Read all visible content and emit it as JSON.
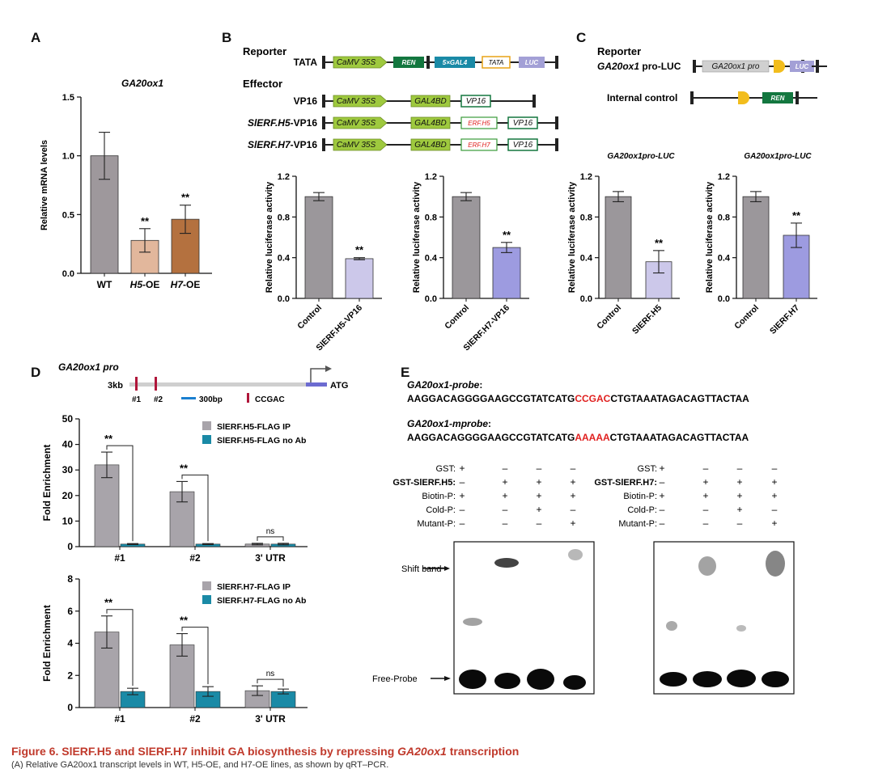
{
  "panel_labels": {
    "A": "A",
    "B": "B",
    "C": "C",
    "D": "D",
    "E": "E"
  },
  "caption": {
    "prefix": "Figure 6.  SlERF.H5 and SlERF.H7 inhibit GA biosynthesis by repressing ",
    "gene": "GA20ox1",
    "suffix": " transcription",
    "line2": "(A) Relative GA20ox1 transcript levels in WT, H5-OE, and H7-OE lines, as shown by qRT–PCR."
  },
  "panel_b": {
    "reporter_label": "Reporter",
    "effector_label": "Effector",
    "rows": [
      {
        "label": "TATA",
        "italic": false,
        "suffix": "",
        "boxes": [
          "CaMV 35S",
          "REN",
          "5×GAL4",
          "TATA",
          "LUC"
        ]
      },
      {
        "label": "VP16",
        "italic": false,
        "suffix": "",
        "boxes": [
          "CaMV 35S",
          "GAL4BD",
          "VP16"
        ]
      },
      {
        "label": "SlERF.H5",
        "italic": true,
        "suffix": "-VP16",
        "boxes": [
          "CaMV 35S",
          "GAL4BD",
          "ERF.H5",
          "VP16"
        ]
      },
      {
        "label": "SlERF.H7",
        "italic": true,
        "suffix": "-VP16",
        "boxes": [
          "CaMV 35S",
          "GAL4BD",
          "ERF.H7",
          "VP16"
        ]
      }
    ]
  },
  "panel_c": {
    "reporter_label": "Reporter",
    "row1_label": "GA20ox1",
    "row1_suffix": " pro-LUC",
    "row1_boxes": [
      "GA20ox1 pro",
      "LUC"
    ],
    "row2_label": "Internal control",
    "row2_boxes": [
      "REN"
    ]
  },
  "panel_d_schematic": {
    "title": "GA20ox1 pro",
    "length": "3kb",
    "atg": "ATG",
    "site1": "#1",
    "site2": "#2",
    "scale": "300bp",
    "motif": "CCGAC"
  },
  "panel_e": {
    "probe_title": "GA20ox1-probe",
    "probe_seq_a": "AAGGACAGGGGAAGCCGTATCATG",
    "probe_seq_b": "CCGAC",
    "probe_seq_c": "CTGTAAATAGACAGTTACTAA",
    "mprobe_title": "GA20ox1-mprobe",
    "mprobe_seq_a": "AAGGACAGGGGAAGCCGTATCATG",
    "mprobe_seq_b": "AAAAA",
    "mprobe_seq_c": "CTGTAAATAGACAGTTACTAA",
    "row_labels_left": [
      "GST:",
      "GST-SlERF.H5:",
      "Biotin-P:",
      "Cold-P:",
      "Mutant-P:"
    ],
    "row_labels_right": [
      "GST:",
      "GST-SlERF.H7:",
      "Biotin-P:",
      "Cold-P:",
      "Mutant-P:"
    ],
    "signs": [
      [
        "+",
        "–",
        "–",
        "–"
      ],
      [
        "–",
        "+",
        "+",
        "+"
      ],
      [
        "+",
        "+",
        "+",
        "+"
      ],
      [
        "–",
        "–",
        "+",
        "–"
      ],
      [
        "–",
        "–",
        "–",
        "+"
      ]
    ],
    "shift_band": "Shift band",
    "free_probe": "Free-Probe"
  },
  "chart_data": [
    {
      "id": "A",
      "type": "bar",
      "title": "GA20ox1",
      "ylabel": "Relative mRNA levels",
      "categories": [
        "WT",
        "H5-OE",
        "H7-OE"
      ],
      "values": [
        1.0,
        0.28,
        0.46
      ],
      "errors": [
        0.2,
        0.1,
        0.12
      ],
      "sig": [
        "",
        "**",
        "**"
      ],
      "ylim": [
        0,
        1.5
      ],
      "yticks": [
        0.0,
        0.5,
        1.0,
        1.5
      ],
      "colors": [
        "#9e989c",
        "#e2b79c",
        "#b4713f"
      ]
    },
    {
      "id": "B1",
      "type": "bar",
      "title": "",
      "ylabel": "Relative luciferase activity",
      "categories": [
        "Control",
        "SlERF.H5-VP16"
      ],
      "values": [
        1.0,
        0.39
      ],
      "errors": [
        0.04,
        0.01
      ],
      "sig": [
        "",
        "**"
      ],
      "ylim": [
        0,
        1.2
      ],
      "yticks": [
        0.0,
        0.4,
        0.8,
        1.2
      ],
      "colors": [
        "#9b979b",
        "#ccc8ea"
      ]
    },
    {
      "id": "B2",
      "type": "bar",
      "title": "",
      "ylabel": "Relative luciferase activity",
      "categories": [
        "Control",
        "SlERF.H7-VP16"
      ],
      "values": [
        1.0,
        0.5
      ],
      "errors": [
        0.04,
        0.05
      ],
      "sig": [
        "",
        "**"
      ],
      "ylim": [
        0,
        1.2
      ],
      "yticks": [
        0.0,
        0.4,
        0.8,
        1.2
      ],
      "colors": [
        "#9b979b",
        "#9d9be0"
      ]
    },
    {
      "id": "C1",
      "type": "bar",
      "title": "GA20ox1pro-LUC",
      "ylabel": "Relative luciferase activity",
      "categories": [
        "Control",
        "SlERF.H5"
      ],
      "values": [
        1.0,
        0.36
      ],
      "errors": [
        0.05,
        0.11
      ],
      "sig": [
        "",
        "**"
      ],
      "ylim": [
        0,
        1.2
      ],
      "yticks": [
        0.0,
        0.4,
        0.8,
        1.2
      ],
      "colors": [
        "#9b979b",
        "#ccc8ea"
      ]
    },
    {
      "id": "C2",
      "type": "bar",
      "title": "GA20ox1pro-LUC",
      "ylabel": "Relative luciferase activity",
      "categories": [
        "Control",
        "SlERF.H7"
      ],
      "values": [
        1.0,
        0.62
      ],
      "errors": [
        0.05,
        0.12
      ],
      "sig": [
        "",
        "**"
      ],
      "ylim": [
        0,
        1.2
      ],
      "yticks": [
        0.0,
        0.4,
        0.8,
        1.2
      ],
      "colors": [
        "#9b979b",
        "#9d9be0"
      ]
    },
    {
      "id": "D1",
      "type": "bar",
      "title": "",
      "ylabel": "Fold Enrichment",
      "categories": [
        "#1",
        "#2",
        "3' UTR"
      ],
      "series": [
        {
          "name": "SlERF.H5-FLAG IP",
          "values": [
            32,
            21.5,
            1.0
          ],
          "errors": [
            5,
            4,
            0.3
          ],
          "color": "#a8a4aa"
        },
        {
          "name": "SlERF.H5-FLAG no Ab",
          "values": [
            1.0,
            1.0,
            1.0
          ],
          "errors": [
            0.2,
            0.2,
            0.3
          ],
          "color": "#1a8aa6"
        }
      ],
      "sig": [
        "**",
        "**",
        "ns"
      ],
      "ylim": [
        0,
        50
      ],
      "yticks": [
        0,
        10,
        20,
        30,
        40,
        50
      ]
    },
    {
      "id": "D2",
      "type": "bar",
      "title": "",
      "ylabel": "Fold Enrichment",
      "categories": [
        "#1",
        "#2",
        "3' UTR"
      ],
      "series": [
        {
          "name": "SlERF.H7-FLAG IP",
          "values": [
            4.7,
            3.9,
            1.05
          ],
          "errors": [
            1.0,
            0.7,
            0.3
          ],
          "color": "#a8a4aa"
        },
        {
          "name": "SlERF.H7-FLAG no Ab",
          "values": [
            1.0,
            1.0,
            1.0
          ],
          "errors": [
            0.2,
            0.3,
            0.15
          ],
          "color": "#1a8aa6"
        }
      ],
      "sig": [
        "**",
        "**",
        "ns"
      ],
      "ylim": [
        0,
        8
      ],
      "yticks": [
        0,
        2,
        4,
        6,
        8
      ]
    }
  ]
}
